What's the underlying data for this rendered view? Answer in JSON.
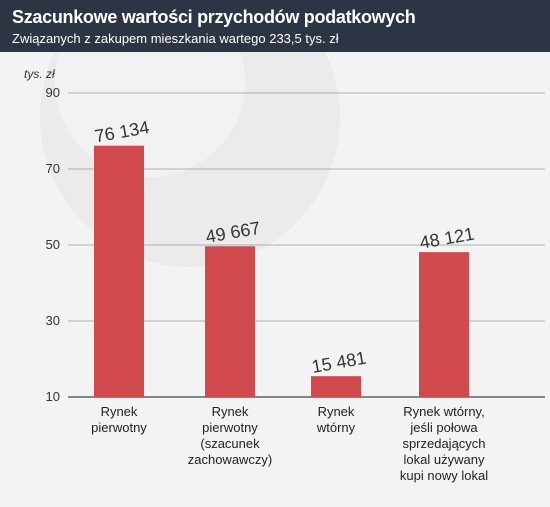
{
  "header": {
    "title": "Szacunkowe wartości przychodów podatkowych",
    "subtitle": "Związanych z zakupem mieszkania wartego 233,5 tys. zł"
  },
  "colors": {
    "header_bg": "#2d3545",
    "bar": "#d04a4d",
    "background": "#f3f3f3"
  },
  "chart_data": {
    "type": "bar",
    "title": "Szacunkowe wartości przychodów podatkowych",
    "subtitle": "Związanych z zakupem mieszkania wartego 233,5 tys. zł",
    "unit_label": "tys. zł",
    "categories": [
      [
        "Rynek",
        "pierwotny"
      ],
      [
        "Rynek",
        "pierwotny",
        "(szacunek",
        "zachowawczy)"
      ],
      [
        "Rynek",
        "wtórny"
      ],
      [
        "Rynek wtórny,",
        "jeśli połowa",
        "sprzedających",
        "lokal używany",
        "kupi nowy lokal"
      ]
    ],
    "values": [
      76.134,
      49.667,
      15.481,
      48.121
    ],
    "data_labels": [
      "76 134",
      "49 667",
      "15 481",
      "48 121"
    ],
    "yticks": [
      10,
      30,
      50,
      70,
      90
    ],
    "ylim": [
      10,
      90
    ],
    "grid": true
  }
}
